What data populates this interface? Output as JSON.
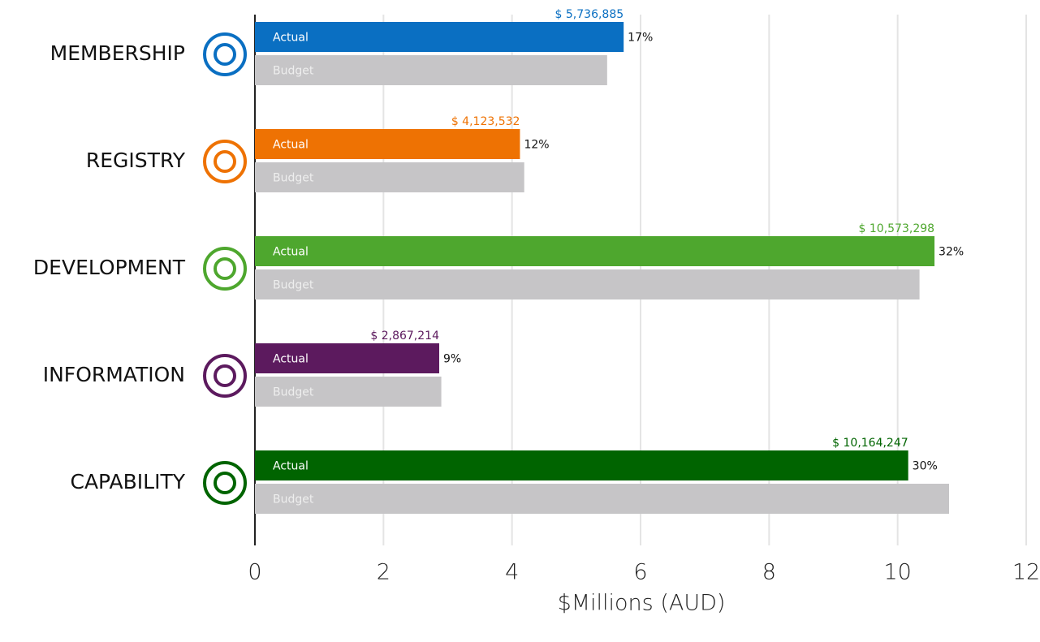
{
  "chart_data": {
    "type": "bar",
    "orientation": "horizontal",
    "categories": [
      "MEMBERSHIP",
      "REGISTRY",
      "DEVELOPMENT",
      "INFORMATION",
      "CAPABILITY"
    ],
    "series": [
      {
        "name": "Actual",
        "colors": [
          "#0a6fc2",
          "#ee7203",
          "#4ea72e",
          "#5c1a5e",
          "#006400"
        ],
        "values": [
          5.736885,
          4.123532,
          10.573298,
          2.867214,
          10.164247
        ],
        "value_labels": [
          "$ 5,736,885",
          "$ 4,123,532",
          "$ 10,573,298",
          "$ 2,867,214",
          "$ 10,164,247"
        ],
        "share_labels": [
          "17%",
          "12%",
          "32%",
          "9%",
          "30%"
        ]
      },
      {
        "name": "Budget",
        "color": "#c6c5c7",
        "values": [
          5.48,
          4.19,
          10.34,
          2.9,
          10.8
        ]
      }
    ],
    "xlabel": "$Millions (AUD)",
    "xlim": [
      0,
      12
    ],
    "xticks": [
      0,
      2,
      4,
      6,
      8,
      10,
      12
    ],
    "grid": true
  }
}
